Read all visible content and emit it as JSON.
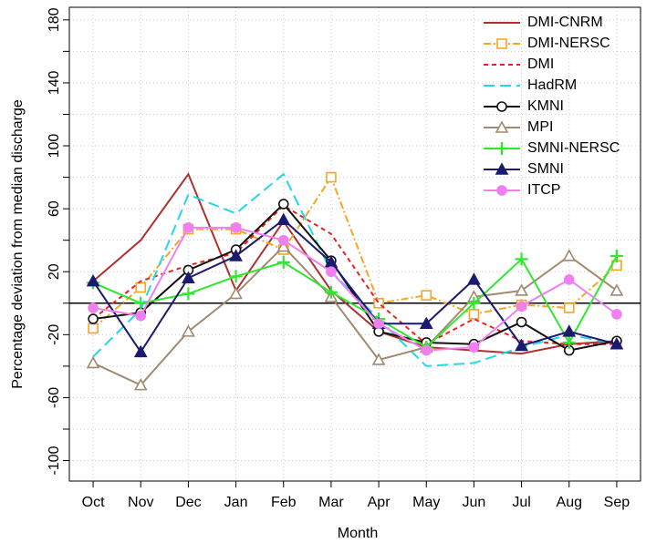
{
  "chart_data": {
    "type": "line",
    "x_label": "Month",
    "y_label": "Percentage deviation from median discharge",
    "categories": [
      "Oct",
      "Nov",
      "Dec",
      "Jan",
      "Feb",
      "Mar",
      "Apr",
      "May",
      "Jun",
      "Jul",
      "Aug",
      "Sep"
    ],
    "ylim": [
      -113,
      188
    ],
    "yticks": [
      -100,
      -60,
      -20,
      20,
      60,
      100,
      140,
      180
    ],
    "minor_yticks": [
      -80,
      -40,
      0,
      40,
      80,
      120,
      160
    ],
    "hline": 0,
    "grid": true,
    "legend": "top-right",
    "series": [
      {
        "name": "DMI-CNRM",
        "color": "#b03030",
        "dash": "solid",
        "marker": "none",
        "values": [
          14,
          40,
          82,
          8,
          52,
          8,
          -18,
          -28,
          -30,
          -32,
          -26,
          -24
        ]
      },
      {
        "name": "DMI-NERSC",
        "color": "#f5a623",
        "dash": "dashdot",
        "marker": "square-open",
        "values": [
          -16,
          10,
          47,
          47,
          34,
          80,
          0,
          5,
          -7,
          -1,
          -3,
          24
        ]
      },
      {
        "name": "DMI",
        "color": "#e8231f",
        "dash": "dashed",
        "marker": "none",
        "values": [
          -10,
          14,
          24,
          32,
          62,
          44,
          0,
          -26,
          -10,
          -24,
          -26,
          -26
        ]
      },
      {
        "name": "HadRM",
        "color": "#22d8e8",
        "dash": "longdash",
        "marker": "none",
        "values": [
          -34,
          -4,
          69,
          57,
          82,
          20,
          -10,
          -40,
          -38,
          -28,
          -20,
          -26
        ]
      },
      {
        "name": "KMNI",
        "color": "#111111",
        "dash": "solid",
        "marker": "circle-open",
        "values": [
          -10,
          -6,
          21,
          34,
          63,
          27,
          -18,
          -25,
          -26,
          -12,
          -30,
          -24
        ]
      },
      {
        "name": "MPI",
        "color": "#a08a70",
        "dash": "solid",
        "marker": "triangle-open",
        "values": [
          -38,
          -52,
          -18,
          6,
          36,
          4,
          -36,
          -28,
          4,
          8,
          30,
          8
        ]
      },
      {
        "name": "SMNI-NERSC",
        "color": "#2ee82e",
        "dash": "solid",
        "marker": "plus",
        "values": [
          13,
          0,
          6,
          17,
          26,
          7,
          -10,
          -28,
          0,
          28,
          -25,
          30
        ]
      },
      {
        "name": "SMNI",
        "color": "#1a1a6e",
        "dash": "solid",
        "marker": "triangle-filled",
        "values": [
          14,
          -31,
          16,
          30,
          53,
          26,
          -13,
          -13,
          15,
          -27,
          -18,
          -26
        ]
      },
      {
        "name": "ITCP",
        "color": "#f080f0",
        "dash": "solid",
        "marker": "circle-filled",
        "values": [
          -3,
          -8,
          48,
          48,
          40,
          20,
          -13,
          -30,
          -28,
          -2,
          15,
          -7
        ]
      }
    ]
  }
}
